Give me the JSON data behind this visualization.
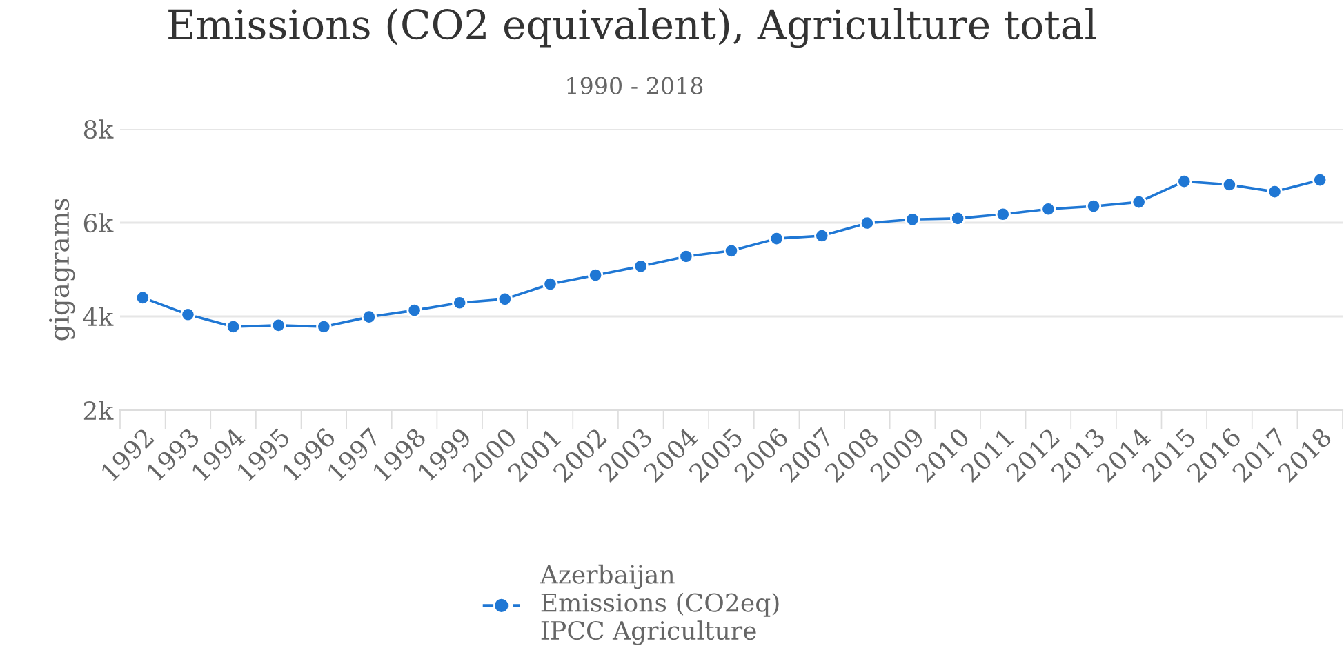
{
  "chart_data": {
    "type": "line",
    "title": "Emissions (CO2 equivalent), Agriculture total",
    "subtitle": "1990 - 2018",
    "ylabel": "gigagrams",
    "categories": [
      "1992",
      "1993",
      "1994",
      "1995",
      "1996",
      "1997",
      "1998",
      "1999",
      "2000",
      "2001",
      "2002",
      "2003",
      "2004",
      "2005",
      "2006",
      "2007",
      "2008",
      "2009",
      "2010",
      "2011",
      "2012",
      "2013",
      "2014",
      "2015",
      "2016",
      "2017",
      "2018"
    ],
    "series": [
      {
        "name": "Azerbaijan\nEmissions (CO2eq)\nIPCC Agriculture",
        "color": "#1f77d4",
        "values": [
          4400,
          4040,
          3780,
          3810,
          3780,
          3990,
          4130,
          4290,
          4370,
          4690,
          4880,
          5070,
          5280,
          5400,
          5660,
          5720,
          5990,
          6070,
          6090,
          6180,
          6290,
          6350,
          6440,
          6880,
          6810,
          6660,
          6910
        ]
      }
    ],
    "ylim": [
      2000,
      8000
    ],
    "yticks": [
      {
        "value": 2000,
        "label": "2k"
      },
      {
        "value": 4000,
        "label": "4k"
      },
      {
        "value": 6000,
        "label": "6k"
      },
      {
        "value": 8000,
        "label": "8k"
      }
    ],
    "grid": "y",
    "legend": "bottom",
    "marker": "circle",
    "line_style": "solid"
  }
}
